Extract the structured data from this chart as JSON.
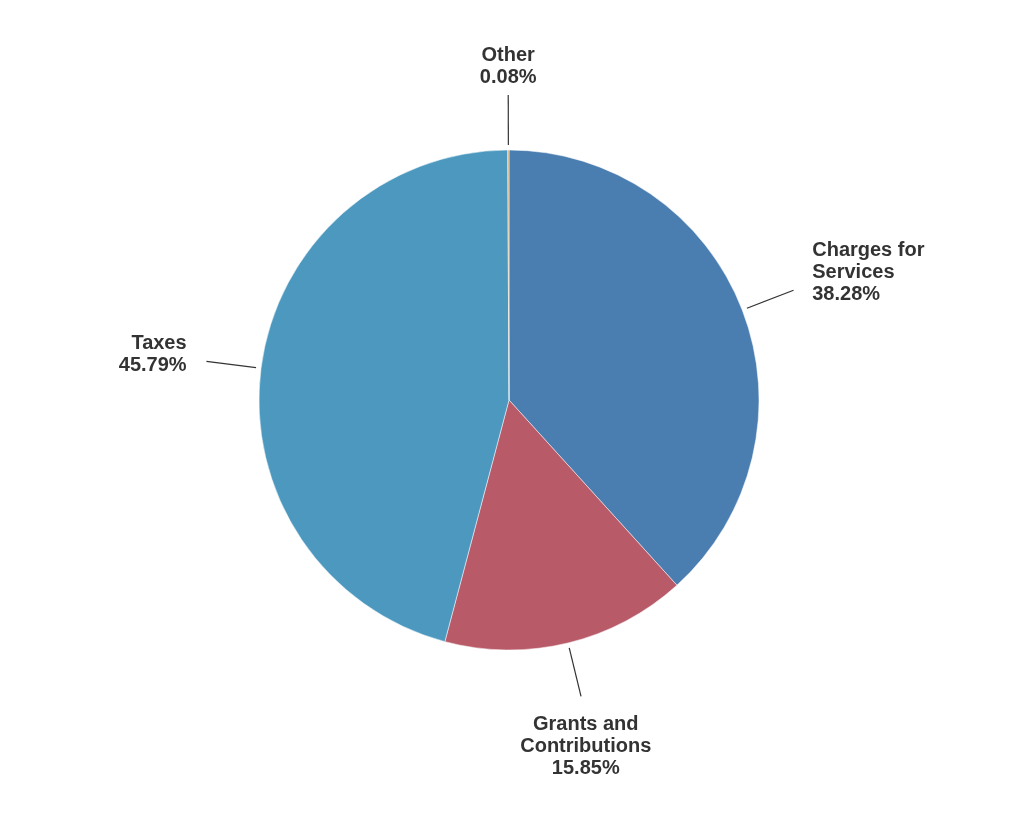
{
  "chart_data": {
    "type": "pie",
    "categories": [
      "Charges for Services",
      "Grants and Contributions",
      "Taxes",
      "Other"
    ],
    "values": [
      38.28,
      15.85,
      45.79,
      0.08
    ],
    "colors": [
      "#4a7db0",
      "#b85a68",
      "#4c98bf",
      "#c8a060"
    ],
    "value_labels": [
      "38.28%",
      "15.85%",
      "45.79%",
      "0.08%"
    ]
  }
}
